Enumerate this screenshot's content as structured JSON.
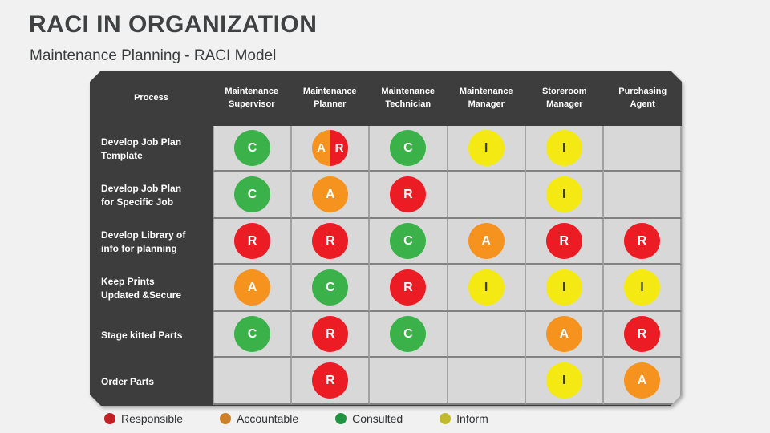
{
  "page": {
    "title": "RACI IN ORGANIZATION",
    "subtitle": "Maintenance Planning - RACI Model"
  },
  "raci": {
    "R": {
      "label": "Responsible",
      "color": "#ec1c24",
      "text_color": "#ffffff"
    },
    "A": {
      "label": "Accountable",
      "color": "#f6921e",
      "text_color": "#ffffff"
    },
    "C": {
      "label": "Consulted",
      "color": "#3bb14a",
      "text_color": "#ffffff"
    },
    "I": {
      "label": "Inform",
      "color": "#f4e912",
      "text_color": "#3a3a3a"
    }
  },
  "table": {
    "columns": [
      "Process",
      "Maintenance Supervisor",
      "Maintenance Planner",
      "Maintenance Technician",
      "Maintenance Manager",
      "Storeroom Manager",
      "Purchasing Agent"
    ],
    "rows": [
      {
        "process": "Develop Job Plan Template",
        "cells": [
          "C",
          "A/R",
          "C",
          "I",
          "I",
          ""
        ]
      },
      {
        "process": "Develop Job Plan for Specific Job",
        "cells": [
          "C",
          "A",
          "R",
          "",
          "I",
          ""
        ]
      },
      {
        "process": "Develop Library of info for planning",
        "cells": [
          "R",
          "R",
          "C",
          "A",
          "R",
          "R"
        ]
      },
      {
        "process": "Keep Prints Updated &Secure",
        "cells": [
          "A",
          "C",
          "R",
          "I",
          "I",
          "I"
        ]
      },
      {
        "process": "Stage kitted Parts",
        "cells": [
          "C",
          "R",
          "C",
          "",
          "A",
          "R"
        ]
      },
      {
        "process": "Order Parts",
        "cells": [
          "",
          "R",
          "",
          "",
          "I",
          "A"
        ]
      }
    ]
  },
  "legend": [
    {
      "label": "Responsible",
      "color": "#c42127"
    },
    {
      "label": "Accountable",
      "color": "#cd7f29"
    },
    {
      "label": "Consulted",
      "color": "#219442"
    },
    {
      "label": "Inform",
      "color": "#c1ba2d"
    }
  ]
}
